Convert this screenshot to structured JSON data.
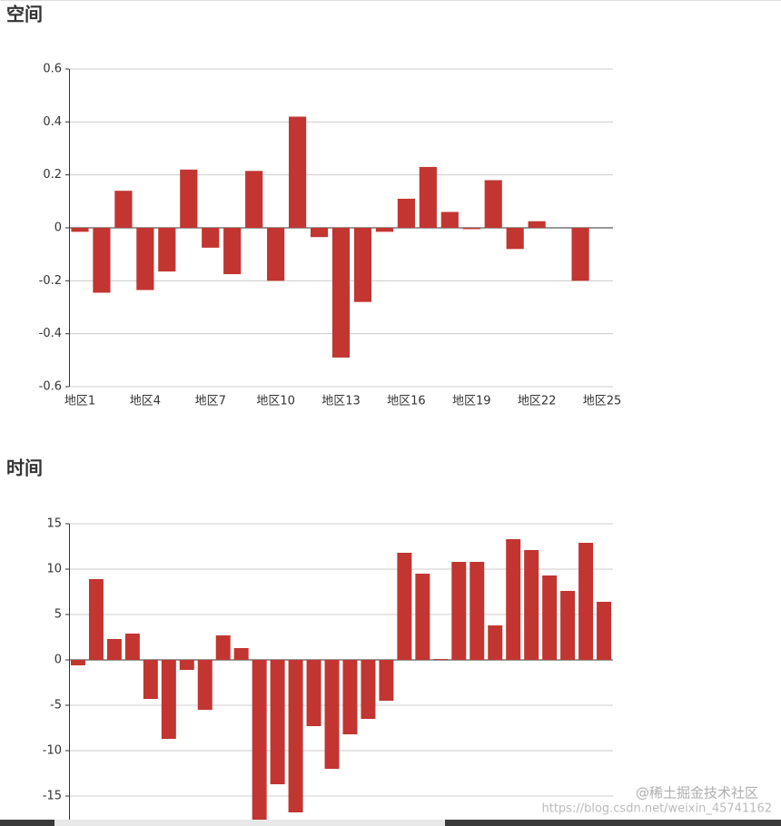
{
  "chart_data": [
    {
      "type": "bar",
      "title": "空间",
      "categories": [
        "地区1",
        null,
        null,
        "地区4",
        null,
        null,
        "地区7",
        null,
        null,
        "地区10",
        null,
        null,
        "地区13",
        null,
        null,
        "地区16",
        null,
        null,
        "地区19",
        null,
        null,
        "地区22",
        null,
        null,
        "地区25"
      ],
      "values": [
        -0.015,
        -0.245,
        0.14,
        -0.235,
        -0.165,
        0.22,
        -0.075,
        -0.175,
        0.215,
        -0.2,
        0.42,
        -0.035,
        -0.49,
        -0.28,
        -0.015,
        0.11,
        0.23,
        0.06,
        -0.005,
        0.18,
        -0.08,
        0.025,
        0,
        -0.2,
        0
      ],
      "color": "#c23531",
      "ylim": [
        -0.6,
        0.6
      ],
      "yticks": [
        -0.6,
        -0.4,
        -0.2,
        0,
        0.2,
        0.4,
        0.6
      ],
      "grid": true
    },
    {
      "type": "bar",
      "title": "时间",
      "categories": [
        null,
        null,
        null,
        null,
        null,
        null,
        null,
        null,
        null,
        null,
        null,
        null,
        null,
        null,
        null,
        null,
        null,
        null,
        null,
        null,
        null,
        null,
        null,
        null,
        null,
        null,
        null,
        null,
        null,
        null
      ],
      "values": [
        -0.6,
        8.9,
        2.3,
        2.9,
        -4.3,
        -8.7,
        -1.1,
        -5.5,
        2.7,
        1.3,
        -18,
        -13.7,
        -16.8,
        -7.3,
        -12,
        -8.2,
        -6.5,
        -4.5,
        11.8,
        9.5,
        0.1,
        10.8,
        10.8,
        3.8,
        13.3,
        12.1,
        9.3,
        7.6,
        12.9,
        6.4
      ],
      "color": "#c23531",
      "ylim": [
        -20,
        15
      ],
      "yticks": [
        -15,
        -10,
        -5,
        0,
        5,
        10,
        15
      ],
      "grid": true
    }
  ],
  "watermark": {
    "text": "@稀土掘金技术社区",
    "url": "https://blog.csdn.net/weixin_45741162"
  }
}
